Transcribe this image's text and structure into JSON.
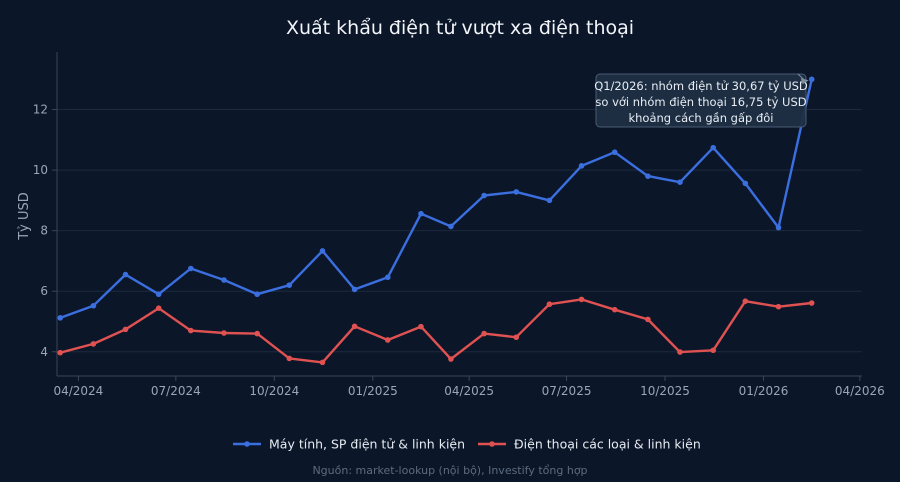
{
  "chart_data": {
    "type": "line",
    "title": "Xuất khẩu điện tử vượt xa điện thoại",
    "ylabel": "Tỷ USD",
    "xlabel": "",
    "ylim": [
      3.2,
      13.9
    ],
    "yticks": [
      4,
      6,
      8,
      10,
      12
    ],
    "xlim": [
      "2024-03-12",
      "2026-04-03"
    ],
    "xticks": [
      {
        "date": "2024-04-01",
        "label": "04/2024"
      },
      {
        "date": "2024-07-01",
        "label": "07/2024"
      },
      {
        "date": "2024-10-01",
        "label": "10/2024"
      },
      {
        "date": "2025-01-01",
        "label": "01/2025"
      },
      {
        "date": "2025-04-01",
        "label": "04/2025"
      },
      {
        "date": "2025-07-01",
        "label": "07/2025"
      },
      {
        "date": "2025-10-01",
        "label": "10/2025"
      },
      {
        "date": "2026-01-01",
        "label": "01/2026"
      },
      {
        "date": "2026-04-01",
        "label": "04/2026"
      }
    ],
    "grid": true,
    "legend_position": "bottom-center",
    "x": [
      "2024-03-15",
      "2024-04-15",
      "2024-05-15",
      "2024-06-15",
      "2024-07-15",
      "2024-08-15",
      "2024-09-15",
      "2024-10-15",
      "2024-11-15",
      "2024-12-15",
      "2025-01-15",
      "2025-02-15",
      "2025-03-15",
      "2025-04-15",
      "2025-05-15",
      "2025-06-15",
      "2025-07-15",
      "2025-08-15",
      "2025-09-15",
      "2025-10-15",
      "2025-11-15",
      "2025-12-15",
      "2026-01-15",
      "2026-02-15",
      "2026-03-15"
    ],
    "series": [
      {
        "name": "Máy tính, SP điện tử & linh kiện",
        "color": "#3b6fe0",
        "values": [
          5.12,
          5.52,
          6.55,
          5.9,
          6.75,
          6.37,
          5.9,
          6.2,
          7.33,
          6.06,
          6.46,
          8.56,
          8.14,
          9.16,
          9.28,
          9.0,
          10.14,
          10.59,
          9.8,
          9.6,
          10.74,
          9.56,
          8.1,
          13.0,
          null
        ]
      },
      {
        "name": "Điện thoại các loại & linh kiện",
        "color": "#e05252",
        "values": [
          3.97,
          4.26,
          4.74,
          5.44,
          4.7,
          4.62,
          4.6,
          3.78,
          3.65,
          4.84,
          4.39,
          4.83,
          3.76,
          4.6,
          4.48,
          5.57,
          5.73,
          5.39,
          5.07,
          3.99,
          4.05,
          5.67,
          5.49,
          5.61,
          null
        ]
      }
    ],
    "annotation": {
      "lines": [
        "Q1/2026: nhóm điện tử 30,67 tỷ USD",
        "so với nhóm điện thoại 16,75 tỷ USD",
        "khoảng cách gần gấp đôi"
      ],
      "target_x": "2026-02-15",
      "target_y": 13.0
    },
    "source": "Nguồn: market-lookup (nội bộ), Investify tổng hợp"
  },
  "colors": {
    "background": "#0b1628",
    "grid": "#1c2a3e",
    "axis": "#3a4658",
    "annotation_bg": "#1f2f45",
    "annotation_border": "#4a5b72"
  }
}
